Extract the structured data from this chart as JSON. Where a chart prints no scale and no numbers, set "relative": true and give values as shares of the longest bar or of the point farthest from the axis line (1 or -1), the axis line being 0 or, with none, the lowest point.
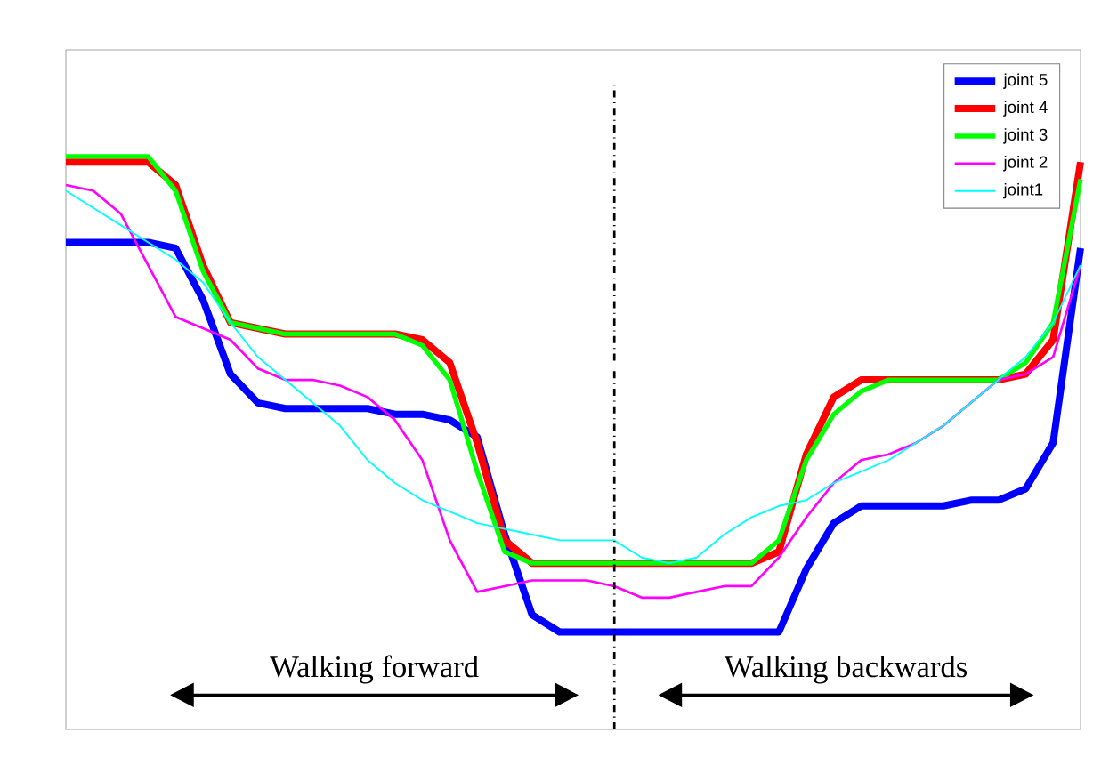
{
  "chart_data": {
    "type": "line",
    "relative": true,
    "categories": [
      null,
      null,
      null,
      null,
      null,
      null,
      null,
      null,
      null,
      null,
      null,
      null,
      null,
      null,
      null,
      null,
      null,
      null,
      null,
      null,
      null,
      null,
      null,
      null,
      null,
      null,
      null,
      null,
      null,
      null,
      null,
      null,
      null,
      null,
      null,
      null,
      null,
      null
    ],
    "series": [
      {
        "name": "joint 5",
        "color": "#0000ff",
        "values": [
          0.85,
          0.85,
          0.85,
          0.85,
          0.84,
          0.75,
          0.62,
          0.57,
          0.56,
          0.56,
          0.56,
          0.56,
          0.55,
          0.55,
          0.54,
          0.51,
          0.34,
          0.2,
          0.17,
          0.17,
          0.17,
          0.17,
          0.17,
          0.17,
          0.17,
          0.17,
          0.17,
          0.28,
          0.36,
          0.39,
          0.39,
          0.39,
          0.39,
          0.4,
          0.4,
          0.42,
          0.5,
          0.84
        ]
      },
      {
        "name": "joint 4",
        "color": "#ff0000",
        "values": [
          0.99,
          0.99,
          0.99,
          0.99,
          0.95,
          0.81,
          0.71,
          0.7,
          0.69,
          0.69,
          0.69,
          0.69,
          0.69,
          0.68,
          0.64,
          0.5,
          0.33,
          0.29,
          0.29,
          0.29,
          0.29,
          0.29,
          0.29,
          0.29,
          0.29,
          0.29,
          0.31,
          0.48,
          0.58,
          0.61,
          0.61,
          0.61,
          0.61,
          0.61,
          0.61,
          0.62,
          0.68,
          0.99
        ]
      },
      {
        "name": "joint 3",
        "color": "#00ff00",
        "values": [
          1.0,
          1.0,
          1.0,
          1.0,
          0.94,
          0.8,
          0.71,
          0.7,
          0.69,
          0.69,
          0.69,
          0.69,
          0.69,
          0.67,
          0.61,
          0.45,
          0.31,
          0.29,
          0.29,
          0.29,
          0.29,
          0.29,
          0.29,
          0.29,
          0.29,
          0.29,
          0.33,
          0.47,
          0.55,
          0.59,
          0.61,
          0.61,
          0.61,
          0.61,
          0.61,
          0.64,
          0.71,
          0.96
        ]
      },
      {
        "name": "joint 2",
        "color": "#ff00ff",
        "values": [
          0.95,
          0.94,
          0.9,
          0.81,
          0.72,
          0.7,
          0.68,
          0.63,
          0.61,
          0.61,
          0.6,
          0.58,
          0.54,
          0.47,
          0.33,
          0.24,
          0.25,
          0.26,
          0.26,
          0.26,
          0.25,
          0.23,
          0.23,
          0.24,
          0.25,
          0.25,
          0.3,
          0.37,
          0.43,
          0.47,
          0.48,
          0.5,
          0.53,
          0.57,
          0.61,
          0.62,
          0.65,
          0.81
        ]
      },
      {
        "name": "joint1",
        "color": "#00ffff",
        "values": [
          0.94,
          0.91,
          0.88,
          0.85,
          0.82,
          0.78,
          0.71,
          0.65,
          0.61,
          0.57,
          0.53,
          0.47,
          0.43,
          0.4,
          0.38,
          0.36,
          0.35,
          0.34,
          0.33,
          0.33,
          0.33,
          0.3,
          0.29,
          0.3,
          0.34,
          0.37,
          0.39,
          0.4,
          0.43,
          0.45,
          0.47,
          0.5,
          0.53,
          0.57,
          0.61,
          0.65,
          0.71,
          0.81
        ]
      }
    ],
    "annotations": [
      "Walking forward",
      "Walking backwards"
    ],
    "legend": "top right",
    "line_style": "solid"
  }
}
